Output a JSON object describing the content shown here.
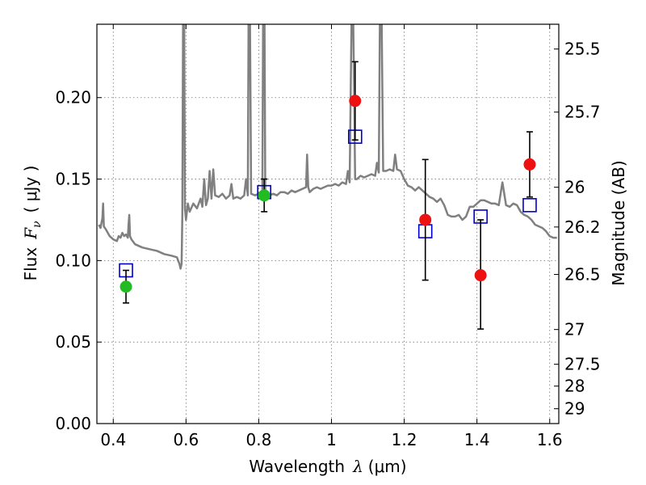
{
  "chart_data": {
    "type": "scatter",
    "xlabel_text": "Wavelength",
    "xlabel_symbol": "λ",
    "xlabel_unit": "(μm)",
    "ylabel_text": "Flux",
    "ylabel_symbol": "F",
    "ylabel_sub": "ν",
    "ylabel_unit": "( μJy )",
    "y2label": "Magnitude (AB)",
    "xlim": [
      0.355,
      1.625
    ],
    "ylim": [
      0.0,
      0.245
    ],
    "grid": true,
    "x_ticks": [
      0.4,
      0.6,
      0.8,
      1.0,
      1.2,
      1.4,
      1.6
    ],
    "x_tick_labels": [
      "0.4",
      "0.6",
      "0.8",
      "1",
      "1.2",
      "1.4",
      "1.6"
    ],
    "y_ticks": [
      0.0,
      0.05,
      0.1,
      0.15,
      0.2
    ],
    "y_tick_labels": [
      "0.00",
      "0.05",
      "0.10",
      "0.15",
      "0.20"
    ],
    "y2_ticks": [
      {
        "label": "25.5",
        "flux": 0.2298
      },
      {
        "label": "25.7",
        "flux": 0.1911
      },
      {
        "label": "26",
        "flux": 0.145
      },
      {
        "label": "26.2",
        "flux": 0.1206
      },
      {
        "label": "26.5",
        "flux": 0.0915
      },
      {
        "label": "27",
        "flux": 0.0577
      },
      {
        "label": "27.5",
        "flux": 0.0364
      },
      {
        "label": "28",
        "flux": 0.023
      },
      {
        "label": "29",
        "flux": 0.0091
      }
    ],
    "series": [
      {
        "kind": "model-spectrum",
        "color": "#808080",
        "points": [
          [
            0.36,
            0.122
          ],
          [
            0.365,
            0.12
          ],
          [
            0.37,
            0.126
          ],
          [
            0.372,
            0.135
          ],
          [
            0.374,
            0.121
          ],
          [
            0.38,
            0.119
          ],
          [
            0.39,
            0.115
          ],
          [
            0.4,
            0.113
          ],
          [
            0.41,
            0.112
          ],
          [
            0.415,
            0.115
          ],
          [
            0.42,
            0.114
          ],
          [
            0.425,
            0.117
          ],
          [
            0.43,
            0.115
          ],
          [
            0.435,
            0.116
          ],
          [
            0.44,
            0.114
          ],
          [
            0.442,
            0.122
          ],
          [
            0.444,
            0.128
          ],
          [
            0.446,
            0.115
          ],
          [
            0.45,
            0.113
          ],
          [
            0.46,
            0.11
          ],
          [
            0.48,
            0.108
          ],
          [
            0.5,
            0.107
          ],
          [
            0.52,
            0.106
          ],
          [
            0.54,
            0.104
          ],
          [
            0.56,
            0.103
          ],
          [
            0.575,
            0.102
          ],
          [
            0.582,
            0.098
          ],
          [
            0.585,
            0.095
          ],
          [
            0.588,
            0.098
          ],
          [
            0.59,
            0.128
          ],
          [
            0.592,
            0.245
          ],
          [
            0.595,
            0.245
          ],
          [
            0.597,
            0.132
          ],
          [
            0.6,
            0.125
          ],
          [
            0.605,
            0.135
          ],
          [
            0.61,
            0.13
          ],
          [
            0.62,
            0.135
          ],
          [
            0.63,
            0.132
          ],
          [
            0.64,
            0.138
          ],
          [
            0.645,
            0.133
          ],
          [
            0.65,
            0.15
          ],
          [
            0.655,
            0.134
          ],
          [
            0.66,
            0.138
          ],
          [
            0.665,
            0.155
          ],
          [
            0.67,
            0.138
          ],
          [
            0.675,
            0.156
          ],
          [
            0.68,
            0.14
          ],
          [
            0.69,
            0.139
          ],
          [
            0.7,
            0.141
          ],
          [
            0.71,
            0.138
          ],
          [
            0.72,
            0.14
          ],
          [
            0.725,
            0.147
          ],
          [
            0.73,
            0.138
          ],
          [
            0.74,
            0.139
          ],
          [
            0.75,
            0.138
          ],
          [
            0.76,
            0.14
          ],
          [
            0.765,
            0.15
          ],
          [
            0.77,
            0.14
          ],
          [
            0.772,
            0.245
          ],
          [
            0.776,
            0.245
          ],
          [
            0.779,
            0.141
          ],
          [
            0.79,
            0.14
          ],
          [
            0.8,
            0.141
          ],
          [
            0.81,
            0.141
          ],
          [
            0.812,
            0.245
          ],
          [
            0.816,
            0.245
          ],
          [
            0.818,
            0.142
          ],
          [
            0.83,
            0.14
          ],
          [
            0.84,
            0.141
          ],
          [
            0.85,
            0.14
          ],
          [
            0.86,
            0.142
          ],
          [
            0.87,
            0.142
          ],
          [
            0.88,
            0.141
          ],
          [
            0.89,
            0.143
          ],
          [
            0.9,
            0.142
          ],
          [
            0.91,
            0.143
          ],
          [
            0.92,
            0.144
          ],
          [
            0.93,
            0.145
          ],
          [
            0.933,
            0.165
          ],
          [
            0.936,
            0.145
          ],
          [
            0.94,
            0.142
          ],
          [
            0.95,
            0.144
          ],
          [
            0.96,
            0.145
          ],
          [
            0.97,
            0.144
          ],
          [
            0.98,
            0.145
          ],
          [
            0.99,
            0.146
          ],
          [
            1.0,
            0.146
          ],
          [
            1.01,
            0.147
          ],
          [
            1.02,
            0.146
          ],
          [
            1.03,
            0.148
          ],
          [
            1.04,
            0.147
          ],
          [
            1.045,
            0.155
          ],
          [
            1.05,
            0.148
          ],
          [
            1.055,
            0.245
          ],
          [
            1.06,
            0.245
          ],
          [
            1.065,
            0.15
          ],
          [
            1.07,
            0.15
          ],
          [
            1.08,
            0.152
          ],
          [
            1.09,
            0.151
          ],
          [
            1.1,
            0.152
          ],
          [
            1.11,
            0.153
          ],
          [
            1.12,
            0.152
          ],
          [
            1.125,
            0.16
          ],
          [
            1.13,
            0.154
          ],
          [
            1.133,
            0.245
          ],
          [
            1.138,
            0.245
          ],
          [
            1.142,
            0.155
          ],
          [
            1.15,
            0.155
          ],
          [
            1.16,
            0.156
          ],
          [
            1.17,
            0.155
          ],
          [
            1.175,
            0.165
          ],
          [
            1.18,
            0.156
          ],
          [
            1.19,
            0.155
          ],
          [
            1.2,
            0.15
          ],
          [
            1.21,
            0.146
          ],
          [
            1.22,
            0.145
          ],
          [
            1.23,
            0.143
          ],
          [
            1.24,
            0.145
          ],
          [
            1.25,
            0.143
          ],
          [
            1.26,
            0.141
          ],
          [
            1.27,
            0.139
          ],
          [
            1.28,
            0.138
          ],
          [
            1.29,
            0.136
          ],
          [
            1.3,
            0.138
          ],
          [
            1.31,
            0.134
          ],
          [
            1.32,
            0.128
          ],
          [
            1.33,
            0.127
          ],
          [
            1.34,
            0.127
          ],
          [
            1.35,
            0.128
          ],
          [
            1.36,
            0.125
          ],
          [
            1.37,
            0.127
          ],
          [
            1.38,
            0.133
          ],
          [
            1.39,
            0.133
          ],
          [
            1.4,
            0.135
          ],
          [
            1.41,
            0.137
          ],
          [
            1.42,
            0.137
          ],
          [
            1.43,
            0.136
          ],
          [
            1.44,
            0.135
          ],
          [
            1.45,
            0.135
          ],
          [
            1.46,
            0.134
          ],
          [
            1.47,
            0.148
          ],
          [
            1.48,
            0.134
          ],
          [
            1.49,
            0.133
          ],
          [
            1.5,
            0.135
          ],
          [
            1.51,
            0.134
          ],
          [
            1.52,
            0.13
          ],
          [
            1.53,
            0.128
          ],
          [
            1.54,
            0.127
          ],
          [
            1.55,
            0.125
          ],
          [
            1.56,
            0.122
          ],
          [
            1.57,
            0.121
          ],
          [
            1.58,
            0.12
          ],
          [
            1.59,
            0.118
          ],
          [
            1.6,
            0.115
          ],
          [
            1.61,
            0.114
          ],
          [
            1.62,
            0.114
          ]
        ]
      },
      {
        "kind": "model-photometry",
        "marker": "open-square",
        "color": "#0000cc",
        "points": [
          [
            0.435,
            0.094
          ],
          [
            0.815,
            0.142
          ],
          [
            1.065,
            0.176
          ],
          [
            1.258,
            0.118
          ],
          [
            1.41,
            0.127
          ],
          [
            1.545,
            0.134
          ]
        ]
      },
      {
        "kind": "observed-photometry",
        "marker": "filled-circle",
        "color": "#22bb22",
        "points": [
          {
            "x": 0.435,
            "y": 0.084,
            "lo": 0.074,
            "hi": 0.094
          },
          {
            "x": 0.815,
            "y": 0.14,
            "lo": 0.13,
            "hi": 0.15
          }
        ]
      },
      {
        "kind": "observed-photometry",
        "marker": "filled-circle",
        "color": "#ee1111",
        "points": [
          {
            "x": 1.065,
            "y": 0.198,
            "lo": 0.174,
            "hi": 0.222
          },
          {
            "x": 1.258,
            "y": 0.125,
            "lo": 0.088,
            "hi": 0.162
          },
          {
            "x": 1.41,
            "y": 0.091,
            "lo": 0.058,
            "hi": 0.125
          },
          {
            "x": 1.545,
            "y": 0.159,
            "lo": 0.139,
            "hi": 0.179
          }
        ]
      }
    ]
  }
}
